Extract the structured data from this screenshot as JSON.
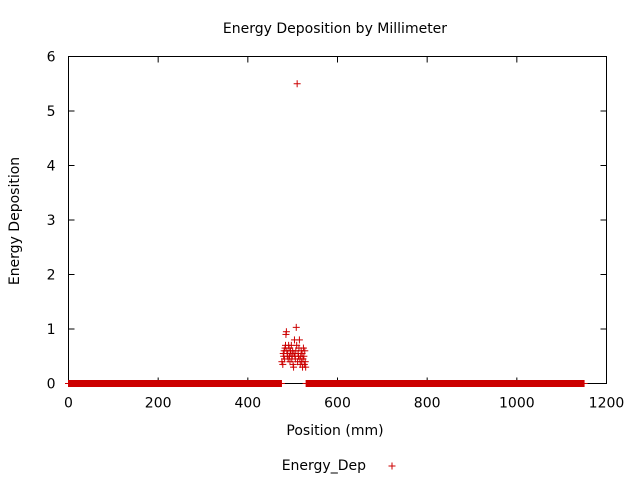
{
  "chart_data": {
    "type": "scatter",
    "title": "Energy Deposition by Millimeter",
    "xlabel": "Position (mm)",
    "ylabel": "Energy Deposition",
    "xlim": [
      0,
      1200
    ],
    "ylim": [
      0,
      6
    ],
    "x_ticks": [
      0,
      200,
      400,
      600,
      800,
      1000,
      1200
    ],
    "y_ticks": [
      0,
      1,
      2,
      3,
      4,
      5,
      6
    ],
    "grid": false,
    "legend_position": "bottom-center",
    "marker": "plus",
    "series": [
      {
        "name": "Energy_Dep",
        "color": "#cc0000",
        "baseline_segments": [
          {
            "x_start": 0,
            "x_end": 475,
            "step": 1,
            "y": 0
          },
          {
            "x_start": 530,
            "x_end": 1150,
            "step": 1,
            "y": 0
          }
        ],
        "points": [
          [
            476,
            0.4
          ],
          [
            478,
            0.35
          ],
          [
            479,
            0.55
          ],
          [
            480,
            0.5
          ],
          [
            481,
            0.6
          ],
          [
            482,
            0.45
          ],
          [
            483,
            0.65
          ],
          [
            484,
            0.7
          ],
          [
            485,
            0.9
          ],
          [
            486,
            0.95
          ],
          [
            487,
            0.6
          ],
          [
            488,
            0.5
          ],
          [
            489,
            0.55
          ],
          [
            490,
            0.45
          ],
          [
            491,
            0.7
          ],
          [
            492,
            0.65
          ],
          [
            493,
            0.5
          ],
          [
            494,
            0.4
          ],
          [
            495,
            0.6
          ],
          [
            496,
            0.55
          ],
          [
            497,
            0.7
          ],
          [
            498,
            0.45
          ],
          [
            499,
            0.5
          ],
          [
            500,
            0.6
          ],
          [
            501,
            0.35
          ],
          [
            502,
            0.3
          ],
          [
            503,
            0.55
          ],
          [
            504,
            0.8
          ],
          [
            505,
            0.5
          ],
          [
            506,
            0.45
          ],
          [
            507,
            0.6
          ],
          [
            508,
            1.03
          ],
          [
            509,
            0.7
          ],
          [
            510,
            5.5
          ],
          [
            511,
            0.4
          ],
          [
            512,
            0.55
          ],
          [
            513,
            0.5
          ],
          [
            514,
            0.65
          ],
          [
            515,
            0.8
          ],
          [
            516,
            0.45
          ],
          [
            517,
            0.35
          ],
          [
            518,
            0.5
          ],
          [
            519,
            0.6
          ],
          [
            520,
            0.4
          ],
          [
            521,
            0.55
          ],
          [
            522,
            0.3
          ],
          [
            523,
            0.45
          ],
          [
            524,
            0.65
          ],
          [
            525,
            0.5
          ],
          [
            526,
            0.35
          ],
          [
            527,
            0.6
          ],
          [
            528,
            0.4
          ],
          [
            529,
            0.3
          ]
        ]
      }
    ]
  }
}
